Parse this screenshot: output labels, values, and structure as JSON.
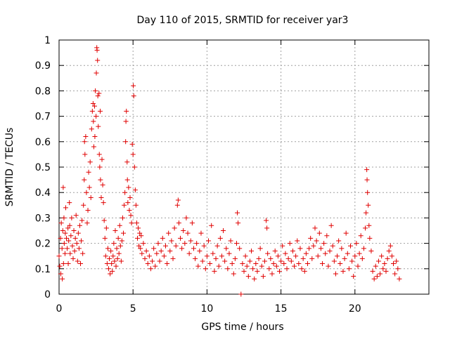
{
  "chart_data": {
    "type": "scatter",
    "title": "Day 110 of 2015, SRMTID for receiver yar3",
    "xlabel": "GPS time / hours",
    "ylabel": "SRMTID / TECUs",
    "xlim": [
      0,
      25
    ],
    "ylim": [
      0,
      1
    ],
    "xticks": [
      0,
      5,
      10,
      15,
      20
    ],
    "yticks": [
      0,
      0.1,
      0.2,
      0.3,
      0.4,
      0.5,
      0.6,
      0.7,
      0.8,
      0.9,
      1
    ],
    "xtick_labels": [
      "0",
      "5",
      "10",
      "15",
      "20"
    ],
    "ytick_labels": [
      "0",
      "0.1",
      "0.2",
      "0.3",
      "0.4",
      "0.5",
      "0.6",
      "0.7",
      "0.8",
      "0.9",
      "1"
    ],
    "grid": true,
    "marker": "+",
    "series_color": "#e00000",
    "series": [
      {
        "name": "SRMTID",
        "points": [
          [
            0.0,
            0.15
          ],
          [
            0.05,
            0.11
          ],
          [
            0.1,
            0.22
          ],
          [
            0.12,
            0.08
          ],
          [
            0.15,
            0.28
          ],
          [
            0.2,
            0.18
          ],
          [
            0.22,
            0.06
          ],
          [
            0.25,
            0.25
          ],
          [
            0.28,
            0.42
          ],
          [
            0.3,
            0.12
          ],
          [
            0.33,
            0.3
          ],
          [
            0.35,
            0.2
          ],
          [
            0.4,
            0.16
          ],
          [
            0.42,
            0.24
          ],
          [
            0.45,
            0.34
          ],
          [
            0.5,
            0.22
          ],
          [
            0.55,
            0.18
          ],
          [
            0.6,
            0.26
          ],
          [
            0.62,
            0.12
          ],
          [
            0.65,
            0.21
          ],
          [
            0.7,
            0.36
          ],
          [
            0.72,
            0.27
          ],
          [
            0.75,
            0.16
          ],
          [
            0.8,
            0.23
          ],
          [
            0.85,
            0.3
          ],
          [
            0.9,
            0.19
          ],
          [
            0.95,
            0.14
          ],
          [
            1.0,
            0.25
          ],
          [
            1.05,
            0.17
          ],
          [
            1.1,
            0.22
          ],
          [
            1.15,
            0.31
          ],
          [
            1.2,
            0.2
          ],
          [
            1.25,
            0.13
          ],
          [
            1.3,
            0.24
          ],
          [
            1.35,
            0.18
          ],
          [
            1.4,
            0.27
          ],
          [
            1.45,
            0.12
          ],
          [
            1.5,
            0.21
          ],
          [
            1.55,
            0.29
          ],
          [
            1.6,
            0.16
          ],
          [
            1.65,
            0.35
          ],
          [
            1.7,
            0.45
          ],
          [
            1.72,
            0.6
          ],
          [
            1.75,
            0.55
          ],
          [
            1.8,
            0.62
          ],
          [
            1.85,
            0.4
          ],
          [
            1.9,
            0.28
          ],
          [
            1.95,
            0.33
          ],
          [
            2.0,
            0.48
          ],
          [
            2.05,
            0.42
          ],
          [
            2.1,
            0.52
          ],
          [
            2.15,
            0.38
          ],
          [
            2.2,
            0.65
          ],
          [
            2.25,
            0.72
          ],
          [
            2.3,
            0.75
          ],
          [
            2.32,
            0.68
          ],
          [
            2.35,
            0.58
          ],
          [
            2.4,
            0.74
          ],
          [
            2.42,
            0.62
          ],
          [
            2.45,
            0.8
          ],
          [
            2.5,
            0.7
          ],
          [
            2.52,
            0.87
          ],
          [
            2.55,
            0.97
          ],
          [
            2.57,
            0.96
          ],
          [
            2.6,
            0.92
          ],
          [
            2.62,
            0.78
          ],
          [
            2.65,
            0.66
          ],
          [
            2.7,
            0.79
          ],
          [
            2.72,
            0.55
          ],
          [
            2.75,
            0.5
          ],
          [
            2.78,
            0.72
          ],
          [
            2.8,
            0.45
          ],
          [
            2.85,
            0.38
          ],
          [
            2.9,
            0.53
          ],
          [
            2.95,
            0.43
          ],
          [
            3.0,
            0.36
          ],
          [
            3.05,
            0.29
          ],
          [
            3.1,
            0.22
          ],
          [
            3.15,
            0.15
          ],
          [
            3.2,
            0.26
          ],
          [
            3.25,
            0.12
          ],
          [
            3.3,
            0.18
          ],
          [
            3.35,
            0.1
          ],
          [
            3.4,
            0.14
          ],
          [
            3.45,
            0.08
          ],
          [
            3.5,
            0.17
          ],
          [
            3.55,
            0.12
          ],
          [
            3.6,
            0.09
          ],
          [
            3.65,
            0.15
          ],
          [
            3.7,
            0.2
          ],
          [
            3.75,
            0.13
          ],
          [
            3.8,
            0.25
          ],
          [
            3.85,
            0.11
          ],
          [
            3.9,
            0.18
          ],
          [
            3.95,
            0.14
          ],
          [
            4.0,
            0.22
          ],
          [
            4.05,
            0.16
          ],
          [
            4.1,
            0.27
          ],
          [
            4.15,
            0.19
          ],
          [
            4.2,
            0.13
          ],
          [
            4.25,
            0.21
          ],
          [
            4.3,
            0.3
          ],
          [
            4.35,
            0.24
          ],
          [
            4.4,
            0.35
          ],
          [
            4.45,
            0.4
          ],
          [
            4.5,
            0.6
          ],
          [
            4.52,
            0.68
          ],
          [
            4.55,
            0.72
          ],
          [
            4.6,
            0.52
          ],
          [
            4.62,
            0.45
          ],
          [
            4.65,
            0.36
          ],
          [
            4.7,
            0.42
          ],
          [
            4.75,
            0.33
          ],
          [
            4.8,
            0.38
          ],
          [
            4.85,
            0.31
          ],
          [
            4.9,
            0.28
          ],
          [
            4.95,
            0.59
          ],
          [
            5.0,
            0.55
          ],
          [
            5.02,
            0.82
          ],
          [
            5.05,
            0.78
          ],
          [
            5.1,
            0.5
          ],
          [
            5.15,
            0.41
          ],
          [
            5.2,
            0.35
          ],
          [
            5.25,
            0.28
          ],
          [
            5.3,
            0.22
          ],
          [
            5.35,
            0.26
          ],
          [
            5.4,
            0.19
          ],
          [
            5.45,
            0.24
          ],
          [
            5.5,
            0.18
          ],
          [
            5.55,
            0.23
          ],
          [
            5.6,
            0.16
          ],
          [
            5.7,
            0.2
          ],
          [
            5.8,
            0.14
          ],
          [
            5.9,
            0.17
          ],
          [
            6.0,
            0.12
          ],
          [
            6.1,
            0.15
          ],
          [
            6.2,
            0.1
          ],
          [
            6.3,
            0.13
          ],
          [
            6.4,
            0.18
          ],
          [
            6.5,
            0.11
          ],
          [
            6.6,
            0.16
          ],
          [
            6.7,
            0.2
          ],
          [
            6.8,
            0.13
          ],
          [
            6.9,
            0.17
          ],
          [
            7.0,
            0.22
          ],
          [
            7.1,
            0.15
          ],
          [
            7.2,
            0.19
          ],
          [
            7.3,
            0.12
          ],
          [
            7.4,
            0.24
          ],
          [
            7.5,
            0.17
          ],
          [
            7.6,
            0.21
          ],
          [
            7.7,
            0.14
          ],
          [
            7.8,
            0.26
          ],
          [
            7.9,
            0.19
          ],
          [
            8.0,
            0.35
          ],
          [
            8.05,
            0.37
          ],
          [
            8.1,
            0.28
          ],
          [
            8.2,
            0.22
          ],
          [
            8.3,
            0.18
          ],
          [
            8.4,
            0.25
          ],
          [
            8.5,
            0.2
          ],
          [
            8.6,
            0.3
          ],
          [
            8.7,
            0.24
          ],
          [
            8.8,
            0.16
          ],
          [
            8.9,
            0.21
          ],
          [
            9.0,
            0.28
          ],
          [
            9.1,
            0.18
          ],
          [
            9.2,
            0.14
          ],
          [
            9.3,
            0.2
          ],
          [
            9.4,
            0.11
          ],
          [
            9.5,
            0.17
          ],
          [
            9.6,
            0.24
          ],
          [
            9.7,
            0.13
          ],
          [
            9.8,
            0.19
          ],
          [
            9.9,
            0.1
          ],
          [
            10.0,
            0.15
          ],
          [
            10.1,
            0.21
          ],
          [
            10.2,
            0.12
          ],
          [
            10.3,
            0.27
          ],
          [
            10.4,
            0.16
          ],
          [
            10.5,
            0.09
          ],
          [
            10.6,
            0.14
          ],
          [
            10.7,
            0.19
          ],
          [
            10.8,
            0.11
          ],
          [
            10.9,
            0.22
          ],
          [
            11.0,
            0.15
          ],
          [
            11.1,
            0.25
          ],
          [
            11.2,
            0.13
          ],
          [
            11.3,
            0.18
          ],
          [
            11.4,
            0.1
          ],
          [
            11.5,
            0.16
          ],
          [
            11.6,
            0.21
          ],
          [
            11.7,
            0.12
          ],
          [
            11.8,
            0.08
          ],
          [
            11.9,
            0.14
          ],
          [
            12.0,
            0.2
          ],
          [
            12.05,
            0.32
          ],
          [
            12.1,
            0.28
          ],
          [
            12.2,
            0.18
          ],
          [
            12.3,
            0.0
          ],
          [
            12.4,
            0.12
          ],
          [
            12.5,
            0.09
          ],
          [
            12.6,
            0.15
          ],
          [
            12.7,
            0.11
          ],
          [
            12.8,
            0.07
          ],
          [
            12.9,
            0.13
          ],
          [
            13.0,
            0.17
          ],
          [
            13.1,
            0.1
          ],
          [
            13.2,
            0.06
          ],
          [
            13.3,
            0.12
          ],
          [
            13.4,
            0.09
          ],
          [
            13.5,
            0.14
          ],
          [
            13.6,
            0.18
          ],
          [
            13.7,
            0.11
          ],
          [
            13.8,
            0.07
          ],
          [
            13.9,
            0.13
          ],
          [
            14.0,
            0.29
          ],
          [
            14.05,
            0.26
          ],
          [
            14.1,
            0.16
          ],
          [
            14.2,
            0.1
          ],
          [
            14.3,
            0.14
          ],
          [
            14.4,
            0.08
          ],
          [
            14.5,
            0.12
          ],
          [
            14.6,
            0.17
          ],
          [
            14.7,
            0.11
          ],
          [
            14.8,
            0.15
          ],
          [
            14.9,
            0.09
          ],
          [
            15.0,
            0.13
          ],
          [
            15.1,
            0.19
          ],
          [
            15.2,
            0.12
          ],
          [
            15.3,
            0.16
          ],
          [
            15.4,
            0.1
          ],
          [
            15.5,
            0.14
          ],
          [
            15.6,
            0.2
          ],
          [
            15.7,
            0.13
          ],
          [
            15.8,
            0.17
          ],
          [
            15.9,
            0.11
          ],
          [
            16.0,
            0.15
          ],
          [
            16.1,
            0.21
          ],
          [
            16.2,
            0.12
          ],
          [
            16.3,
            0.18
          ],
          [
            16.4,
            0.1
          ],
          [
            16.5,
            0.14
          ],
          [
            16.6,
            0.09
          ],
          [
            16.7,
            0.16
          ],
          [
            16.8,
            0.12
          ],
          [
            16.9,
            0.18
          ],
          [
            17.0,
            0.22
          ],
          [
            17.1,
            0.14
          ],
          [
            17.2,
            0.19
          ],
          [
            17.3,
            0.26
          ],
          [
            17.4,
            0.21
          ],
          [
            17.5,
            0.15
          ],
          [
            17.6,
            0.24
          ],
          [
            17.7,
            0.18
          ],
          [
            17.8,
            0.12
          ],
          [
            17.9,
            0.2
          ],
          [
            18.0,
            0.16
          ],
          [
            18.1,
            0.23
          ],
          [
            18.2,
            0.11
          ],
          [
            18.3,
            0.17
          ],
          [
            18.4,
            0.27
          ],
          [
            18.5,
            0.19
          ],
          [
            18.6,
            0.13
          ],
          [
            18.7,
            0.08
          ],
          [
            18.8,
            0.15
          ],
          [
            18.9,
            0.21
          ],
          [
            19.0,
            0.12
          ],
          [
            19.1,
            0.18
          ],
          [
            19.2,
            0.09
          ],
          [
            19.3,
            0.14
          ],
          [
            19.4,
            0.24
          ],
          [
            19.5,
            0.16
          ],
          [
            19.6,
            0.1
          ],
          [
            19.7,
            0.19
          ],
          [
            19.8,
            0.13
          ],
          [
            19.9,
            0.07
          ],
          [
            20.0,
            0.15
          ],
          [
            20.1,
            0.2
          ],
          [
            20.2,
            0.11
          ],
          [
            20.3,
            0.16
          ],
          [
            20.4,
            0.23
          ],
          [
            20.5,
            0.14
          ],
          [
            20.6,
            0.18
          ],
          [
            20.7,
            0.26
          ],
          [
            20.75,
            0.32
          ],
          [
            20.8,
            0.49
          ],
          [
            20.82,
            0.45
          ],
          [
            20.85,
            0.4
          ],
          [
            20.9,
            0.35
          ],
          [
            20.95,
            0.27
          ],
          [
            21.0,
            0.22
          ],
          [
            21.1,
            0.17
          ],
          [
            21.2,
            0.09
          ],
          [
            21.3,
            0.06
          ],
          [
            21.4,
            0.11
          ],
          [
            21.5,
            0.07
          ],
          [
            21.6,
            0.13
          ],
          [
            21.7,
            0.08
          ],
          [
            21.8,
            0.15
          ],
          [
            21.9,
            0.1
          ],
          [
            22.0,
            0.12
          ],
          [
            22.1,
            0.09
          ],
          [
            22.2,
            0.14
          ],
          [
            22.3,
            0.17
          ],
          [
            22.4,
            0.19
          ],
          [
            22.5,
            0.15
          ],
          [
            22.6,
            0.12
          ],
          [
            22.7,
            0.08
          ],
          [
            22.8,
            0.13
          ],
          [
            22.9,
            0.1
          ],
          [
            23.0,
            0.06
          ]
        ]
      }
    ]
  }
}
